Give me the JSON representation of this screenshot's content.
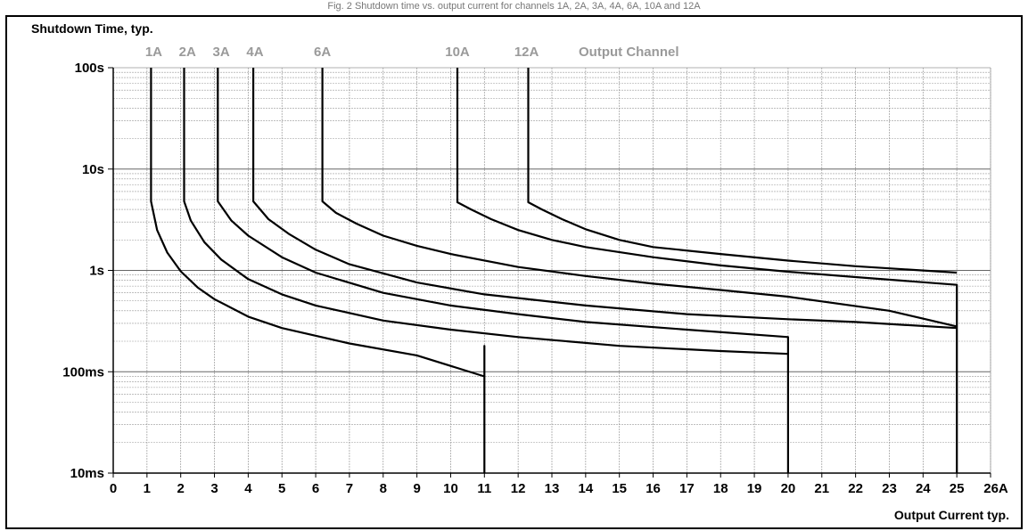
{
  "caption": "Fig. 2 Shutdown time vs. output current for channels 1A, 2A, 3A, 4A, 6A, 10A and 12A",
  "chart_data": {
    "type": "line",
    "title": "Shutdown Time, typ.",
    "xlabel": "Output Current typ.",
    "ylabel": "Shutdown Time, typ.",
    "y_scale": "log",
    "xlim": [
      0,
      26
    ],
    "ylim": [
      0.01,
      100
    ],
    "x_ticks": [
      "0",
      "1",
      "2",
      "3",
      "4",
      "5",
      "6",
      "7",
      "8",
      "9",
      "10",
      "11",
      "12",
      "13",
      "14",
      "15",
      "16",
      "17",
      "18",
      "19",
      "20",
      "21",
      "22",
      "23",
      "24",
      "25",
      "26A"
    ],
    "y_ticks": [
      {
        "value": 100,
        "label": "100s"
      },
      {
        "value": 10,
        "label": "10s"
      },
      {
        "value": 1,
        "label": "1s"
      },
      {
        "value": 0.1,
        "label": "100ms"
      },
      {
        "value": 0.01,
        "label": "10ms"
      }
    ],
    "legend_title": "Output Channel",
    "grid": true,
    "series": [
      {
        "name": "1A",
        "label_x": 1.2,
        "x": [
          1.12,
          1.12,
          1.12,
          1.3,
          1.6,
          2.0,
          2.5,
          3.0,
          4.0,
          5.0,
          7.0,
          9.0,
          11.0,
          11.0,
          11.0
        ],
        "y": [
          100,
          20,
          4.8,
          2.5,
          1.5,
          0.98,
          0.68,
          0.52,
          0.35,
          0.27,
          0.19,
          0.145,
          0.09,
          0.18,
          0.01
        ]
      },
      {
        "name": "2A",
        "label_x": 2.2,
        "x": [
          2.1,
          2.1,
          2.1,
          2.3,
          2.7,
          3.2,
          4.0,
          5.0,
          6.0,
          8.0,
          10.0,
          12.0,
          15.0,
          18.0,
          20.0,
          20.0,
          20.0
        ],
        "y": [
          100,
          20,
          4.8,
          3.1,
          1.9,
          1.28,
          0.82,
          0.58,
          0.45,
          0.32,
          0.26,
          0.22,
          0.18,
          0.16,
          0.15,
          0.22,
          0.01
        ]
      },
      {
        "name": "3A",
        "label_x": 3.2,
        "x": [
          3.1,
          3.1,
          3.1,
          3.5,
          4.0,
          5.0,
          6.0,
          8.0,
          10.0,
          12.0,
          14.0,
          17.0,
          20.0,
          20.0
        ],
        "y": [
          100,
          20,
          4.8,
          3.1,
          2.2,
          1.35,
          0.95,
          0.6,
          0.45,
          0.37,
          0.31,
          0.26,
          0.22,
          0.22
        ]
      },
      {
        "name": "4A",
        "label_x": 4.2,
        "x": [
          4.15,
          4.15,
          4.15,
          4.6,
          5.2,
          6.0,
          7.0,
          9.0,
          11.0,
          14.0,
          17.0,
          20.0,
          22.0,
          25.0,
          25.0,
          25.0
        ],
        "y": [
          100,
          20,
          4.8,
          3.2,
          2.3,
          1.6,
          1.15,
          0.76,
          0.58,
          0.45,
          0.37,
          0.33,
          0.31,
          0.27,
          0.72,
          0.01
        ]
      },
      {
        "name": "6A",
        "label_x": 6.2,
        "x": [
          6.2,
          6.2,
          6.2,
          6.6,
          7.2,
          8.0,
          9.0,
          10.0,
          12.0,
          14.0,
          16.0,
          18.0,
          20.0,
          23.0,
          25.0
        ],
        "y": [
          100,
          20,
          4.8,
          3.7,
          2.9,
          2.2,
          1.75,
          1.45,
          1.08,
          0.88,
          0.74,
          0.64,
          0.55,
          0.4,
          0.28
        ]
      },
      {
        "name": "10A",
        "label_x": 10.2,
        "x": [
          10.2,
          10.2,
          10.2,
          10.6,
          11.2,
          12.0,
          13.0,
          14.0,
          16.0,
          18.0,
          20.0,
          22.0,
          25.0
        ],
        "y": [
          100,
          20,
          4.7,
          4.0,
          3.2,
          2.5,
          2.0,
          1.7,
          1.35,
          1.12,
          0.97,
          0.86,
          0.72
        ]
      },
      {
        "name": "12A",
        "label_x": 12.25,
        "x": [
          12.3,
          12.3,
          12.3,
          12.7,
          13.3,
          14.0,
          15.0,
          16.0,
          18.0,
          20.0,
          22.0,
          25.0
        ],
        "y": [
          100,
          20,
          4.7,
          4.0,
          3.2,
          2.55,
          2.0,
          1.7,
          1.45,
          1.25,
          1.1,
          0.95
        ]
      }
    ],
    "colors": {
      "curve": "#000000",
      "grid": "#999999",
      "channel_label": "#9a9a9a"
    }
  }
}
